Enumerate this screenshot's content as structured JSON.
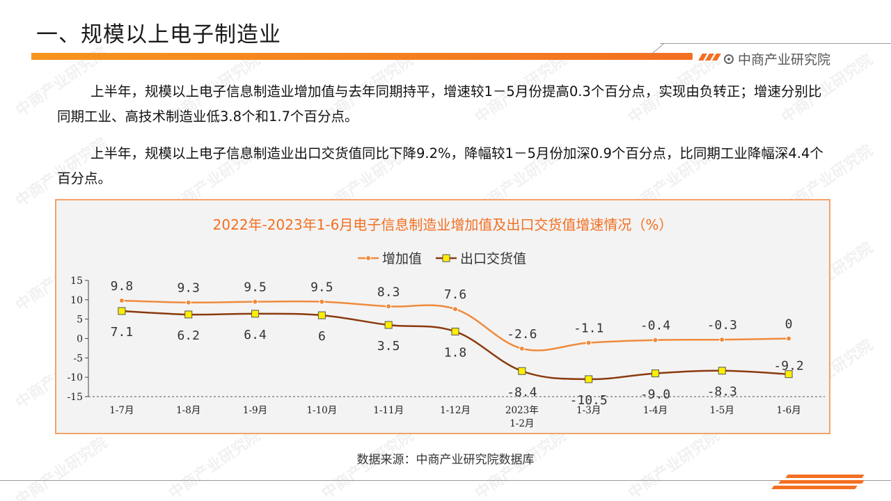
{
  "header": {
    "title": "一、规模以上电子制造业",
    "brand": "中商产业研究院"
  },
  "paragraphs": [
    "上半年，规模以上电子信息制造业增加值与去年同期持平，增速较1－5月份提高0.3个百分点，实现由负转正；增速分别比同期工业、高技术制造业低3.8个和1.7个百分点。",
    "上半年，规模以上电子信息制造业出口交货值同比下降9.2%，降幅较1－5月份加深0.9个百分点，比同期工业降幅深4.4个百分点。"
  ],
  "source": "数据来源：中商产业研究院数据库",
  "watermark": "中商产业研究院",
  "colors": {
    "accent": "#f36f21",
    "series1": "#f08a3c",
    "series2": "#8b3a0e",
    "marker2_fill": "#ffee00",
    "title": "#f36f21"
  },
  "chart_data": {
    "type": "line",
    "title": "2022年-2023年1-6月电子信息制造业增加值及出口交货值增速情况（%）",
    "legend_position": "top-center",
    "categories": [
      "1-7月",
      "1-8月",
      "1-9月",
      "1-10月",
      "1-11月",
      "1-12月",
      "2023年\n1-2月",
      "1-3月",
      "1-4月",
      "1-5月",
      "1-6月"
    ],
    "ylim": [
      -15,
      15
    ],
    "yticks": [
      15,
      10,
      5,
      0,
      -5,
      -10,
      -15
    ],
    "grid": false,
    "series": [
      {
        "name": "增加值",
        "values": [
          9.8,
          9.3,
          9.5,
          9.5,
          8.3,
          7.6,
          -2.6,
          -1.1,
          -0.4,
          -0.3,
          0
        ],
        "labels": [
          "9.8",
          "9.3",
          "9.5",
          "9.5",
          "8.3",
          "7.6",
          "-2.6",
          "-1.1",
          "-0.4",
          "-0.3",
          "0"
        ],
        "marker": "circle",
        "smooth": true
      },
      {
        "name": "出口交货值",
        "values": [
          7.1,
          6.2,
          6.4,
          6,
          3.5,
          1.8,
          -8.4,
          -10.5,
          -9.0,
          -8.3,
          -9.2
        ],
        "labels": [
          "7.1",
          "6.2",
          "6.4",
          "6",
          "3.5",
          "1.8",
          "-8.4",
          "-10.5",
          "-9.0",
          "-8.3",
          "-9.2"
        ],
        "marker": "square",
        "smooth": true
      }
    ]
  }
}
